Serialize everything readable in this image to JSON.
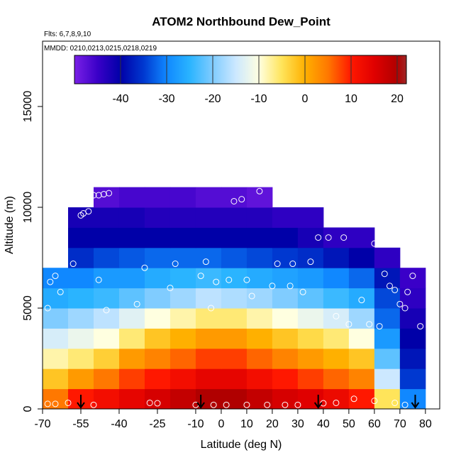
{
  "chart_data": {
    "type": "heatmap",
    "title": "ATOM2 Northbound Dew_Point",
    "subtitle": "Flts: 6,7,8,9,10",
    "annotation": "MMDD: 0210,0213,0215,0218,0219",
    "xlabel": "Latitude (deg N)",
    "ylabel": "Altitude (m)",
    "xlim": [
      -70,
      85.6
    ],
    "ylim": [
      0,
      18240
    ],
    "xticks": [
      -70,
      -55,
      -40,
      -25,
      -10,
      0,
      10,
      20,
      30,
      40,
      50,
      60,
      70,
      80
    ],
    "yticks": [
      0,
      5000,
      10000,
      15000
    ],
    "xbins": [
      -70,
      -60,
      -50,
      -40,
      -30,
      -20,
      -10,
      0,
      10,
      20,
      30,
      40,
      50,
      60,
      70,
      80
    ],
    "ybins": [
      0,
      1000,
      2000,
      3000,
      4000,
      5000,
      6000,
      7000,
      8000,
      9000,
      10000,
      11000
    ],
    "z": [
      [
        5,
        10,
        12,
        14,
        16,
        18,
        20,
        20,
        18,
        16,
        15,
        13,
        10,
        -5,
        -30
      ],
      [
        -2,
        2,
        5,
        8,
        10,
        12,
        14,
        14,
        12,
        10,
        8,
        6,
        4,
        -15,
        -35
      ],
      [
        -8,
        -6,
        -3,
        2,
        4,
        6,
        8,
        8,
        6,
        4,
        2,
        0,
        -2,
        -22,
        -38
      ],
      [
        -14,
        -12,
        -10,
        -6,
        -2,
        0,
        2,
        2,
        0,
        -2,
        -4,
        -6,
        -10,
        -28,
        -40
      ],
      [
        -20,
        -18,
        -16,
        -13,
        -10,
        -8,
        -6,
        -6,
        -8,
        -10,
        -12,
        -14,
        -18,
        -32,
        -42
      ],
      [
        -26,
        -25,
        -24,
        -22,
        -20,
        -18,
        -16,
        -17,
        -18,
        -20,
        -22,
        -24,
        -26,
        -34,
        -44
      ],
      [
        -30,
        -30,
        -28,
        -28,
        -26,
        -25,
        -24,
        -25,
        -26,
        -27,
        -28,
        -30,
        -32,
        -38,
        -45
      ],
      [
        null,
        -36,
        -34,
        -33,
        -32,
        -32,
        -32,
        -33,
        -34,
        -35,
        -36,
        -38,
        -40,
        -44,
        null
      ],
      [
        null,
        -40,
        -40,
        -40,
        -40,
        -40,
        -40,
        -40,
        -40,
        -40,
        -42,
        -44,
        -44,
        null,
        null
      ],
      [
        null,
        -42,
        -42,
        -42,
        -43,
        -43,
        -43,
        -43,
        -43,
        -44,
        -44,
        null,
        null,
        null,
        null
      ],
      [
        null,
        null,
        -47,
        -46,
        -46,
        -46,
        -47,
        -47,
        -48,
        null,
        null,
        null,
        null,
        null,
        null
      ]
    ],
    "colorbar_lim": [
      -50,
      22
    ],
    "colorbar_ticks": [
      -40,
      -30,
      -20,
      -10,
      0,
      10,
      20
    ],
    "colorscale": [
      {
        "value": -50,
        "color": "#7a20e6"
      },
      {
        "value": -45,
        "color": "#3a00c8"
      },
      {
        "value": -40,
        "color": "#0000a8"
      },
      {
        "value": -35,
        "color": "#0038d0"
      },
      {
        "value": -30,
        "color": "#1088ff"
      },
      {
        "value": -25,
        "color": "#2ab4ff"
      },
      {
        "value": -20,
        "color": "#80ccff"
      },
      {
        "value": -15,
        "color": "#cce8ff"
      },
      {
        "value": -10,
        "color": "#ffffe0"
      },
      {
        "value": -5,
        "color": "#ffe45a"
      },
      {
        "value": 0,
        "color": "#ffb000"
      },
      {
        "value": 5,
        "color": "#ff7800"
      },
      {
        "value": 10,
        "color": "#ff1800"
      },
      {
        "value": 15,
        "color": "#e00000"
      },
      {
        "value": 20,
        "color": "#b00000"
      },
      {
        "value": 22,
        "color": "#a02828"
      }
    ],
    "points": {
      "x": [
        -68,
        -65,
        -60,
        -68,
        -67,
        -65,
        -63,
        -58,
        -55,
        -54,
        -52,
        -50,
        -48,
        -46,
        -44,
        -48,
        -45,
        -33,
        -30,
        -28,
        -20,
        -18,
        -8,
        -6,
        -4,
        -2,
        3,
        5,
        8,
        10,
        12,
        15,
        20,
        22,
        27,
        28,
        32,
        35,
        38,
        42,
        45,
        48,
        50,
        55,
        58,
        60,
        62,
        64,
        66,
        68,
        70,
        72,
        73,
        78,
        75,
        -50,
        -25,
        -10,
        -3,
        2,
        10,
        18,
        25,
        30,
        40,
        45,
        52,
        60,
        68,
        72
      ],
      "y": [
        250,
        250,
        300,
        5000,
        6300,
        6600,
        5800,
        7200,
        9600,
        9700,
        9800,
        10600,
        10600,
        10650,
        10700,
        6400,
        4900,
        5200,
        7000,
        300,
        6000,
        7200,
        6600,
        7300,
        5000,
        6300,
        6400,
        10300,
        10400,
        6400,
        5600,
        10800,
        6100,
        7200,
        6100,
        7200,
        5800,
        7300,
        8500,
        8500,
        4600,
        8500,
        4200,
        5400,
        4200,
        8200,
        4100,
        6700,
        6100,
        5900,
        5200,
        5000,
        5800,
        4100,
        6600,
        200,
        280,
        200,
        200,
        200,
        200,
        200,
        200,
        200,
        280,
        300,
        500,
        400,
        300,
        200
      ]
    },
    "arrows": {
      "x": [
        -55,
        -8,
        38,
        76
      ]
    }
  }
}
